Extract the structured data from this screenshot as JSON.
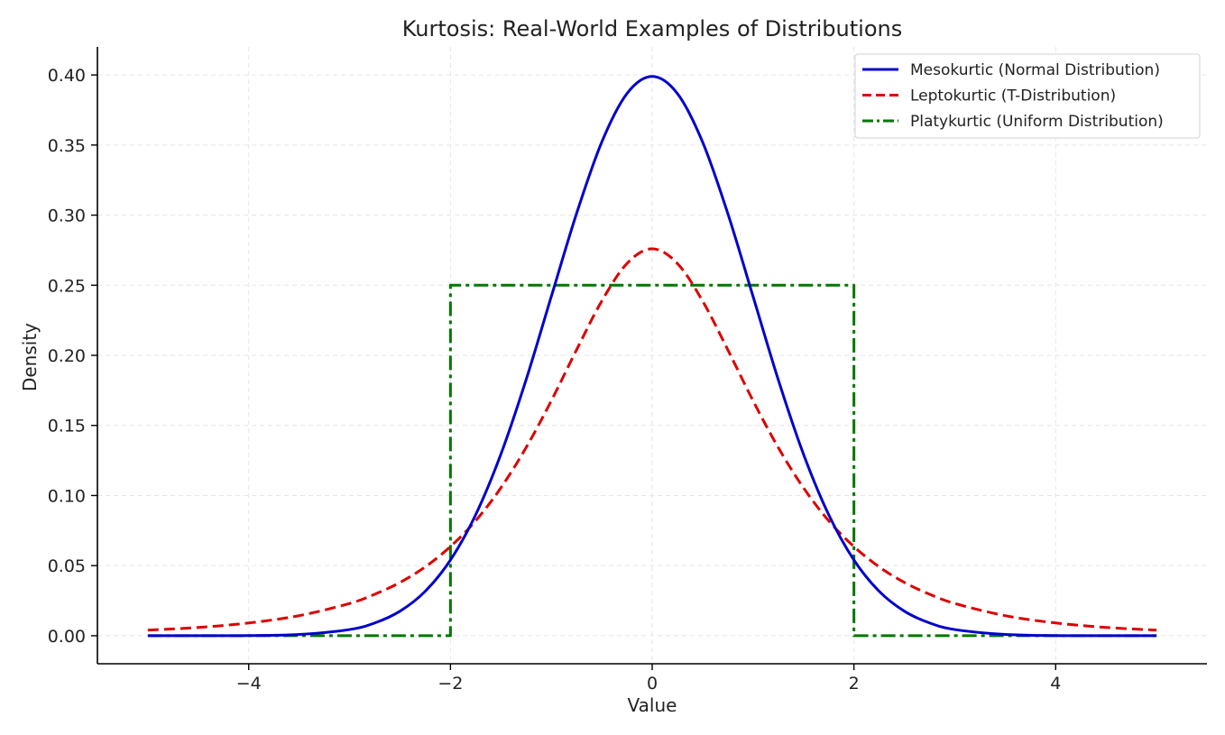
{
  "chart_data": {
    "type": "line",
    "title": "Kurtosis: Real-World Examples of Distributions",
    "xlabel": "Value",
    "ylabel": "Density",
    "xlim": [
      -5.5,
      5.5
    ],
    "ylim": [
      -0.02,
      0.42
    ],
    "x_ticks": [
      -4,
      -2,
      0,
      2,
      4
    ],
    "x_tick_labels": [
      "−4",
      "−2",
      "0",
      "2",
      "4"
    ],
    "y_ticks": [
      0.0,
      0.05,
      0.1,
      0.15,
      0.2,
      0.25,
      0.3,
      0.35,
      0.4
    ],
    "y_tick_labels": [
      "0.00",
      "0.05",
      "0.10",
      "0.15",
      "0.20",
      "0.25",
      "0.30",
      "0.35",
      "0.40"
    ],
    "grid": true,
    "legend_position": "top-right",
    "series": [
      {
        "name": "Mesokurtic (Normal Distribution)",
        "color": "#0000cc",
        "style": "solid",
        "x": [
          -5,
          -4.5,
          -4,
          -3.5,
          -3,
          -2.75,
          -2.5,
          -2.25,
          -2,
          -1.75,
          -1.5,
          -1.25,
          -1,
          -0.75,
          -0.5,
          -0.25,
          0,
          0.25,
          0.5,
          0.75,
          1,
          1.25,
          1.5,
          1.75,
          2,
          2.25,
          2.5,
          2.75,
          3,
          3.5,
          4,
          4.5,
          5
        ],
        "y": [
          0.0,
          0.0,
          0.0001,
          0.0009,
          0.0044,
          0.0091,
          0.0175,
          0.0317,
          0.054,
          0.0863,
          0.1295,
          0.1826,
          0.242,
          0.3011,
          0.3521,
          0.3867,
          0.3989,
          0.3867,
          0.3521,
          0.3011,
          0.242,
          0.1826,
          0.1295,
          0.0863,
          0.054,
          0.0317,
          0.0175,
          0.0091,
          0.0044,
          0.0009,
          0.0001,
          0.0,
          0.0
        ]
      },
      {
        "name": "Leptokurtic (T-Distribution)",
        "color": "#dd0000",
        "style": "dashed",
        "x": [
          -5,
          -4.5,
          -4,
          -3.5,
          -3,
          -2.75,
          -2.5,
          -2.25,
          -2,
          -1.75,
          -1.5,
          -1.25,
          -1,
          -0.75,
          -0.5,
          -0.25,
          0,
          0.25,
          0.5,
          0.75,
          1,
          1.25,
          1.5,
          1.75,
          2,
          2.25,
          2.5,
          2.75,
          3,
          3.5,
          4,
          4.5,
          5
        ],
        "y": [
          0.004,
          0.0059,
          0.0091,
          0.0143,
          0.023,
          0.0296,
          0.038,
          0.0491,
          0.0636,
          0.082,
          0.1055,
          0.1342,
          0.1676,
          0.2039,
          0.2387,
          0.2655,
          0.276,
          0.2655,
          0.2387,
          0.2039,
          0.1676,
          0.1342,
          0.1055,
          0.082,
          0.0636,
          0.0491,
          0.038,
          0.0296,
          0.023,
          0.0143,
          0.0091,
          0.0059,
          0.004
        ]
      },
      {
        "name": "Platykurtic (Uniform Distribution)",
        "color": "#007700",
        "style": "dashdot",
        "x": [
          -5,
          -2,
          -2,
          2,
          2,
          5
        ],
        "y": [
          0.0,
          0.0,
          0.25,
          0.25,
          0.0,
          0.0
        ]
      }
    ]
  }
}
